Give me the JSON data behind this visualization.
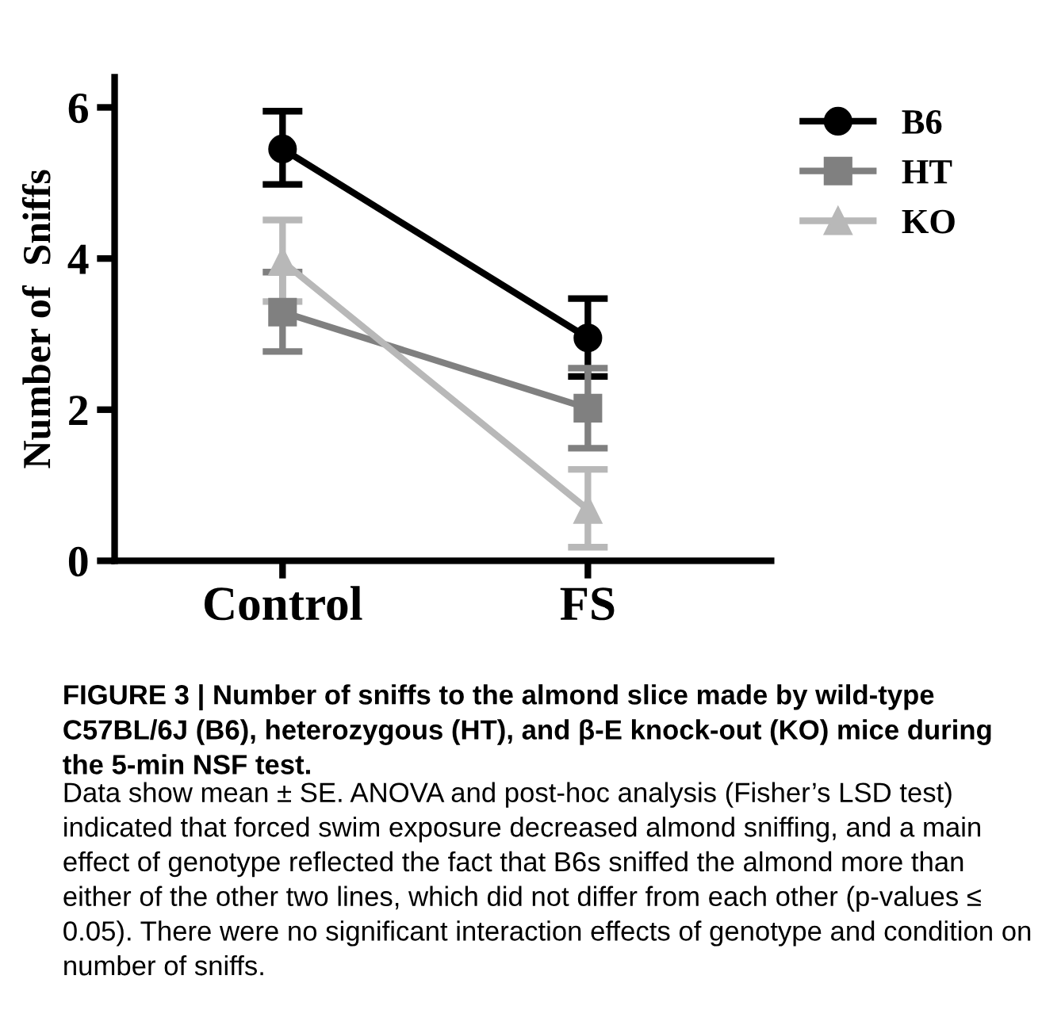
{
  "chart_data": {
    "type": "line",
    "ylabel": "Number of  Sniffs",
    "categories": [
      "Control",
      "FS"
    ],
    "series": [
      {
        "name": "B6",
        "color": "#000000",
        "marker": "circle",
        "values": [
          5.45,
          2.95
        ],
        "errors": [
          [
            4.98,
            5.95
          ],
          [
            2.44,
            3.47
          ]
        ]
      },
      {
        "name": "HT",
        "color": "#808080",
        "marker": "square",
        "values": [
          3.29,
          2.02
        ],
        "errors": [
          [
            2.77,
            3.82
          ],
          [
            1.49,
            2.55
          ]
        ]
      },
      {
        "name": "KO",
        "color": "#b8b8b8",
        "marker": "triangle",
        "values": [
          3.96,
          0.68
        ],
        "errors": [
          [
            3.43,
            4.51
          ],
          [
            0.18,
            1.21
          ]
        ]
      }
    ],
    "ylim": [
      0,
      6.4
    ],
    "yticks": [
      0,
      2,
      4,
      6
    ],
    "grid": false,
    "legend": "top right",
    "annotations": [
      "FIGURE 3 | Number of sniffs to the almond slice made by wild-type C57BL/6J (B6), heterozygous (HT), and β-E knock-out (KO) mice during the 5-min NSF test.",
      "Data show mean ± SE. ANOVA and post-hoc analysis (Fisher’s LSD test) indicated that forced swim exposure decreased almond sniffing, and a main effect of genotype reflected the fact that B6s sniffed the almond more than either of the other two lines, which did not differ from each other (p-values ≤ 0.05). There were no significant interaction effects of genotype and condition on number of sniffs."
    ]
  }
}
